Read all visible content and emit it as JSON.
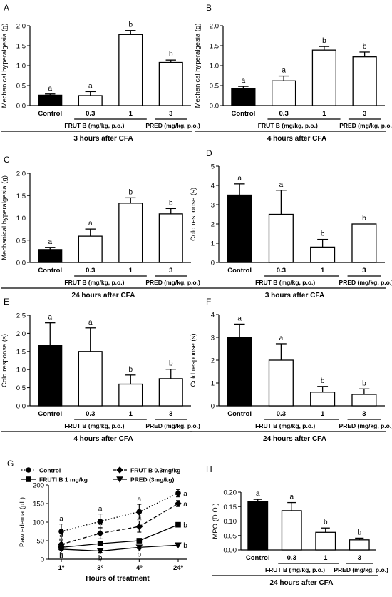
{
  "figure": {
    "panels": [
      {
        "letter": "A",
        "ylabel": "Mechanical hyperalgesia (g)",
        "ylim": [
          0,
          2.0
        ],
        "yticks": [
          "0.0",
          "0.5",
          "1.0",
          "1.5",
          "2.0"
        ],
        "group_label": "FRUT B (mg/kg, p.o.)",
        "ref_label": "PRED (mg/kg, p.o.)",
        "time_label": "3 hours after CFA"
      },
      {
        "letter": "B",
        "ylabel": "Mechanical hyperalgesia (g)",
        "ylim": [
          0,
          2.0
        ],
        "yticks": [
          "0.0",
          "0.5",
          "1.0",
          "1.5",
          "2.0"
        ],
        "group_label": "FRUT B (mg/kg, p.o.)",
        "ref_label": "PRED (mg/kg, p.o.)",
        "time_label": "4 hours after CFA"
      },
      {
        "letter": "C",
        "ylabel": "Mechanical hyperalgesia (g)",
        "ylim": [
          0,
          2.0
        ],
        "yticks": [
          "0.0",
          "0.5",
          "1.0",
          "1.5",
          "2.0"
        ],
        "group_label": "FRUT B (mg/kg, p.o.)",
        "ref_label": "PRED (mg/kg, p.o.)",
        "time_label": "24 hours after CFA"
      },
      {
        "letter": "D",
        "ylabel": "Cold response (s)",
        "ylim": [
          0,
          5
        ],
        "yticks": [
          "0",
          "1",
          "2",
          "3",
          "4",
          "5"
        ],
        "group_label": "FRUT B (mg/kg, p.o.)",
        "ref_label": "PRED (mg/kg, p.o.)",
        "time_label": "3 hours after CFA"
      },
      {
        "letter": "E",
        "ylabel": "Cold response (s)",
        "ylim": [
          0,
          2.5
        ],
        "yticks": [
          "0.0",
          "0.5",
          "1.0",
          "1.5",
          "2.0",
          "2.5"
        ],
        "group_label": "FRUT B (mg/kg, p.o.)",
        "ref_label": "PRED (mg/kg, p.o.)",
        "time_label": "4 hours after CFA"
      },
      {
        "letter": "F",
        "ylabel": "Cold response (s)",
        "ylim": [
          0,
          4
        ],
        "yticks": [
          "0",
          "1",
          "2",
          "3",
          "4"
        ],
        "group_label": "FRUT B (mg/kg, p.o.)",
        "ref_label": "PRED (mg/kg, p.o.)",
        "time_label": "24 hours after CFA"
      },
      {
        "letter": "G",
        "ylabel": "Paw edema (µL)",
        "xlabel": "Hours of treatment",
        "ylim": [
          0,
          200
        ],
        "yticks": [
          "0",
          "50",
          "100",
          "150",
          "200"
        ],
        "xticks": [
          "1º",
          "3º",
          "4º",
          "24º"
        ],
        "legend": [
          "Control",
          "FRUT B 0.3mg/kg",
          "FRUTI B 1 mg/kg",
          "PRED (3mg/kg)"
        ]
      },
      {
        "letter": "H",
        "ylabel": "MPO (D.O.)",
        "ylim": [
          0,
          0.2
        ],
        "yticks": [
          "0.00",
          "0.05",
          "0.10",
          "0.15",
          "0.20"
        ],
        "group_label": "FRUT B (mg/kg, p.o.)",
        "ref_label": "PRED (mg/kg, p.o.)",
        "time_label": "24 hours after CFA"
      }
    ]
  },
  "chart_data": [
    {
      "type": "bar",
      "panel": "A",
      "ylabel": "Mechanical hyperalgesia (g)",
      "ylim": [
        0,
        2.0
      ],
      "categories": [
        "Control",
        "0.3",
        "1",
        "3"
      ],
      "values": [
        0.26,
        0.25,
        1.78,
        1.08
      ],
      "errors": [
        0.03,
        0.1,
        0.1,
        0.06
      ],
      "fills": [
        "black",
        "white",
        "white",
        "white"
      ],
      "letters": [
        "a",
        "a",
        "b",
        "b"
      ]
    },
    {
      "type": "bar",
      "panel": "B",
      "ylabel": "Mechanical hyperalgesia (g)",
      "ylim": [
        0,
        2.0
      ],
      "categories": [
        "Control",
        "0.3",
        "1",
        "3"
      ],
      "values": [
        0.43,
        0.62,
        1.39,
        1.22
      ],
      "errors": [
        0.05,
        0.12,
        0.09,
        0.12
      ],
      "fills": [
        "black",
        "white",
        "white",
        "white"
      ],
      "letters": [
        "a",
        "a",
        "b",
        "b"
      ]
    },
    {
      "type": "bar",
      "panel": "C",
      "ylabel": "Mechanical hyperalgesia (g)",
      "ylim": [
        0,
        2.0
      ],
      "categories": [
        "Control",
        "0.3",
        "1",
        "3"
      ],
      "values": [
        0.29,
        0.59,
        1.33,
        1.09
      ],
      "errors": [
        0.05,
        0.16,
        0.12,
        0.12
      ],
      "fills": [
        "black",
        "white",
        "white",
        "white"
      ],
      "letters": [
        "a",
        "a",
        "b",
        "b"
      ]
    },
    {
      "type": "bar",
      "panel": "D",
      "ylabel": "Cold response (s)",
      "ylim": [
        0,
        5
      ],
      "categories": [
        "Control",
        "0.3",
        "1",
        "3"
      ],
      "values": [
        3.5,
        2.5,
        0.8,
        2.0
      ],
      "errors": [
        0.58,
        1.25,
        0.4,
        0
      ],
      "fills": [
        "black",
        "white",
        "white",
        "white"
      ],
      "letters": [
        "a",
        "a",
        "b",
        "b"
      ]
    },
    {
      "type": "bar",
      "panel": "E",
      "ylabel": "Cold response (s)",
      "ylim": [
        0,
        2.5
      ],
      "categories": [
        "Control",
        "0.3",
        "1",
        "3"
      ],
      "values": [
        1.67,
        1.5,
        0.6,
        0.75
      ],
      "errors": [
        0.62,
        0.65,
        0.25,
        0.26
      ],
      "fills": [
        "black",
        "white",
        "white",
        "white"
      ],
      "letters": [
        "a",
        "a",
        "b",
        "b"
      ]
    },
    {
      "type": "bar",
      "panel": "F",
      "ylabel": "Cold response (s)",
      "ylim": [
        0,
        4
      ],
      "categories": [
        "Control",
        "0.3",
        "1",
        "3"
      ],
      "values": [
        3.0,
        2.0,
        0.6,
        0.5
      ],
      "errors": [
        0.58,
        0.72,
        0.25,
        0.24
      ],
      "fills": [
        "black",
        "white",
        "white",
        "white"
      ],
      "letters": [
        "a",
        "a",
        "b",
        "b"
      ]
    },
    {
      "type": "line",
      "panel": "G",
      "xlabel": "Hours of treatment",
      "ylabel": "Paw edema (µL)",
      "ylim": [
        0,
        200
      ],
      "categories": [
        "1º",
        "3º",
        "4º",
        "24º"
      ],
      "series": [
        {
          "name": "Control",
          "marker": "circle",
          "dash": "dotted",
          "values": [
            75,
            102,
            128,
            178
          ],
          "errors": [
            20,
            20,
            20,
            10
          ],
          "letters": [
            "a",
            "a",
            "a",
            "a"
          ]
        },
        {
          "name": "FRUT B 0.3mg/kg",
          "marker": "diamond",
          "dash": "dashed",
          "values": [
            40,
            70,
            88,
            150
          ],
          "errors": [
            12,
            15,
            15,
            8
          ],
          "letters": [
            "a",
            "a",
            "a",
            "a"
          ]
        },
        {
          "name": "FRUTI B 1 mg/kg",
          "marker": "square",
          "dash": "solid",
          "values": [
            32,
            42,
            50,
            93
          ],
          "errors": [
            6,
            6,
            6,
            6
          ],
          "letters": [
            "b",
            "b",
            "b",
            "b"
          ]
        },
        {
          "name": "PRED (3mg/kg)",
          "marker": "triangle-down",
          "dash": "solid",
          "values": [
            27,
            22,
            32,
            38
          ],
          "errors": [
            4,
            4,
            4,
            3
          ],
          "letters": [
            "b",
            "b",
            "b",
            "b"
          ]
        }
      ]
    },
    {
      "type": "bar",
      "panel": "H",
      "ylabel": "MPO (D.O.)",
      "ylim": [
        0,
        0.2
      ],
      "categories": [
        "Control",
        "0.3",
        "1",
        "3"
      ],
      "values": [
        0.167,
        0.136,
        0.061,
        0.035
      ],
      "errors": [
        0.008,
        0.028,
        0.015,
        0.006
      ],
      "fills": [
        "black",
        "white",
        "white",
        "white"
      ],
      "letters": [
        "a",
        "a",
        "b",
        "b"
      ]
    }
  ]
}
